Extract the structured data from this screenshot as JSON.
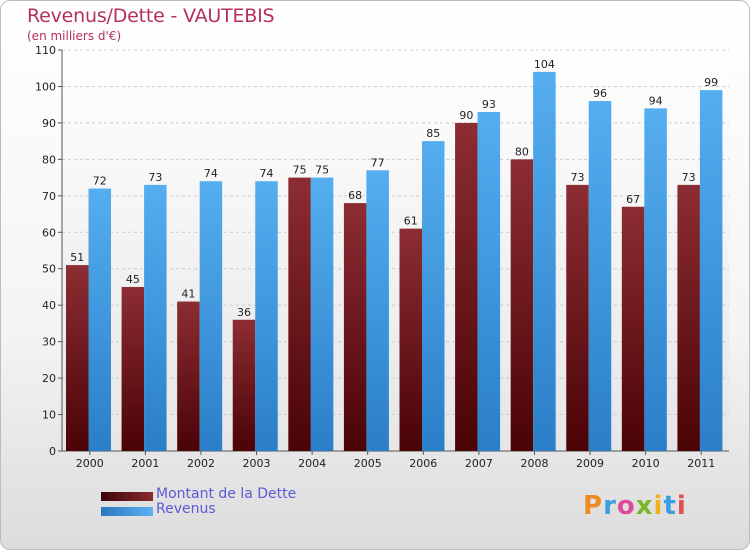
{
  "chart_data": {
    "type": "bar",
    "title": "Revenus/Dette - VAUTEBIS",
    "subtitle": "(en milliers d'€)",
    "categories": [
      "2000",
      "2001",
      "2002",
      "2003",
      "2004",
      "2005",
      "2006",
      "2007",
      "2008",
      "2009",
      "2010",
      "2011"
    ],
    "series": [
      {
        "name": "Montant de la Dette",
        "color": "#7a1a1f",
        "values": [
          51,
          45,
          41,
          36,
          75,
          68,
          61,
          90,
          80,
          73,
          67,
          73
        ]
      },
      {
        "name": "Revenus",
        "color": "#3b97e0",
        "values": [
          72,
          73,
          74,
          74,
          75,
          77,
          85,
          93,
          104,
          96,
          94,
          99
        ]
      }
    ],
    "ylim": [
      0,
      110
    ],
    "yticks": [
      0,
      10,
      20,
      30,
      40,
      50,
      60,
      70,
      80,
      90,
      100,
      110
    ],
    "grid": true,
    "legend_position": "bottom-left"
  },
  "logo": {
    "text": "Proxiti"
  }
}
